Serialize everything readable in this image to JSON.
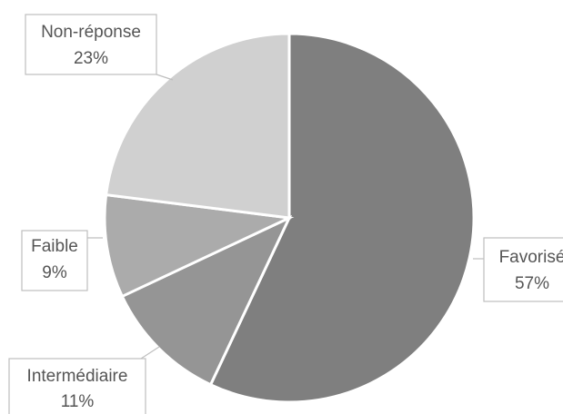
{
  "chart_data": {
    "type": "pie",
    "slices": [
      {
        "label": "Favorisé",
        "value": 57,
        "value_label": "57%",
        "color": "#7f7f7f"
      },
      {
        "label": "Intermédiaire",
        "value": 11,
        "value_label": "11%",
        "color": "#959595"
      },
      {
        "label": "Faible",
        "value": 9,
        "value_label": "9%",
        "color": "#ababab"
      },
      {
        "label": "Non-réponse",
        "value": 23,
        "value_label": "23%",
        "color": "#d0d0d0"
      }
    ]
  }
}
